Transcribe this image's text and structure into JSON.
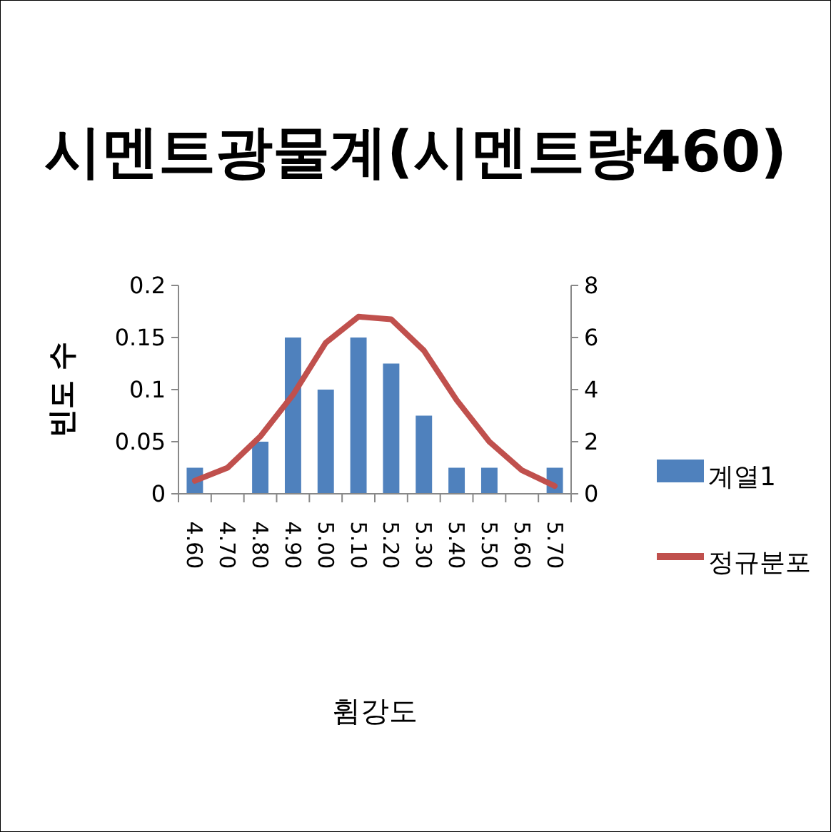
{
  "chart_data": {
    "type": "bar",
    "title": "시멘트광물계(시멘트량460)",
    "xlabel": "휨강도",
    "ylabel": "빈도 수",
    "categories": [
      "4.60",
      "4.70",
      "4.80",
      "4.90",
      "5.00",
      "5.10",
      "5.20",
      "5.30",
      "5.40",
      "5.50",
      "5.60",
      "5.70"
    ],
    "series": [
      {
        "name": "계열1",
        "color": "#4f81bd",
        "values": [
          0.025,
          0,
          0.05,
          0.15,
          0.1,
          0.15,
          0.125,
          0.075,
          0.025,
          0.025,
          0,
          0.025
        ]
      },
      {
        "name": "정규분포",
        "type": "line",
        "axis": "y2",
        "color": "#c0504d",
        "values": [
          0.5,
          1.0,
          2.2,
          3.8,
          5.8,
          6.8,
          6.7,
          5.5,
          3.6,
          2.0,
          0.9,
          0.3
        ]
      }
    ],
    "ylim": [
      0,
      0.2
    ],
    "yticks": [
      0,
      0.05,
      0.1,
      0.15,
      0.2
    ],
    "y2lim": [
      0,
      8
    ],
    "y2ticks": [
      0,
      2,
      4,
      6,
      8
    ],
    "legend": "right",
    "marker": "none",
    "line_style": "solid"
  }
}
